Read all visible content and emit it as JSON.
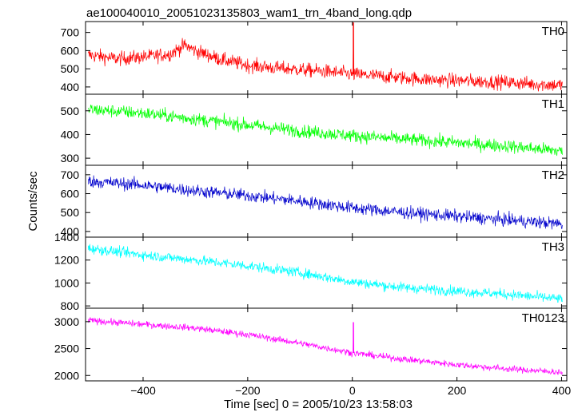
{
  "chart_data": {
    "type": "line",
    "title": "ae100040010_20051023135803_wam1_trn_4band_long.qdp",
    "xlabel": "Time [sec] 0 = 2005/10/23 13:58:03",
    "ylabel": "Counts/sec",
    "xlim": [
      -510,
      410
    ],
    "xticks": [
      -400,
      -200,
      0,
      200,
      400
    ],
    "panels": [
      {
        "name": "TH0",
        "color": "#ff0000",
        "ylim": [
          360,
          760
        ],
        "yticks": [
          400,
          500,
          600,
          700
        ],
        "x": [
          -500,
          -450,
          -400,
          -350,
          -320,
          -300,
          -250,
          -200,
          -150,
          -100,
          -50,
          0,
          50,
          100,
          150,
          200,
          250,
          300,
          350,
          400
        ],
        "y": [
          575,
          555,
          565,
          580,
          630,
          600,
          550,
          520,
          505,
          495,
          485,
          470,
          460,
          450,
          440,
          435,
          430,
          425,
          415,
          410
        ],
        "noise": 35,
        "spike": {
          "x": 2,
          "y": 755
        }
      },
      {
        "name": "TH1",
        "color": "#00ff00",
        "ylim": [
          270,
          570
        ],
        "yticks": [
          300,
          400,
          500
        ],
        "x": [
          -500,
          -400,
          -300,
          -200,
          -100,
          0,
          100,
          200,
          300,
          400
        ],
        "y": [
          505,
          490,
          465,
          440,
          415,
          395,
          380,
          365,
          350,
          330
        ],
        "noise": 25,
        "spike": null
      },
      {
        "name": "TH2",
        "color": "#0000cc",
        "ylim": [
          370,
          750
        ],
        "yticks": [
          400,
          500,
          600,
          700
        ],
        "x": [
          -500,
          -400,
          -300,
          -200,
          -100,
          0,
          100,
          200,
          300,
          400
        ],
        "y": [
          665,
          645,
          615,
          590,
          560,
          525,
          500,
          480,
          460,
          440
        ],
        "noise": 30,
        "spike": null
      },
      {
        "name": "TH3",
        "color": "#00ffff",
        "ylim": [
          780,
          1400
        ],
        "yticks": [
          800,
          1000,
          1200,
          1400
        ],
        "x": [
          -500,
          -400,
          -300,
          -200,
          -100,
          0,
          100,
          200,
          300,
          400
        ],
        "y": [
          1300,
          1245,
          1200,
          1150,
          1090,
          1010,
          960,
          930,
          900,
          860
        ],
        "noise": 40,
        "spike": null
      },
      {
        "name": "TH0123",
        "color": "#ff00ff",
        "ylim": [
          1900,
          3250
        ],
        "yticks": [
          2000,
          2500,
          3000
        ],
        "x": [
          -500,
          -400,
          -300,
          -200,
          -100,
          0,
          100,
          200,
          300,
          400
        ],
        "y": [
          3020,
          2950,
          2880,
          2760,
          2600,
          2420,
          2300,
          2200,
          2120,
          2060
        ],
        "noise": 55,
        "spike": {
          "x": 2,
          "y": 2990
        }
      }
    ]
  }
}
